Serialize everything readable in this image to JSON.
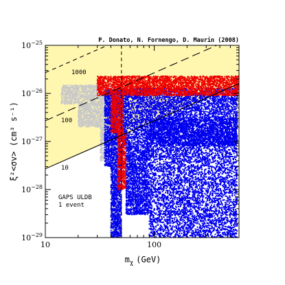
{
  "chart_data": {
    "type": "scatter",
    "title": "",
    "credit": "P. Donato, N. Fornengo, D. Maurin (2008)",
    "xlabel": "m",
    "xlabel_sub": "χ",
    "xlabel_unit": "(GeV)",
    "ylabel": "ξ²<σv> (cm³ s⁻¹)",
    "x_scale": "log",
    "y_scale": "log",
    "xlim": [
      10,
      600
    ],
    "ylim": [
      1e-29,
      1e-25
    ],
    "x_ticks": [
      {
        "value": 10,
        "label": "10"
      },
      {
        "value": 100,
        "label": "100"
      }
    ],
    "y_ticks": [
      {
        "value": 1e-29,
        "base": "10",
        "exp": "−29"
      },
      {
        "value": 1e-28,
        "base": "10",
        "exp": "−28"
      },
      {
        "value": 1e-27,
        "base": "10",
        "exp": "−27"
      },
      {
        "value": 1e-26,
        "base": "10",
        "exp": "−26"
      },
      {
        "value": 1e-25,
        "base": "10",
        "exp": "−25"
      }
    ],
    "excluded_region": {
      "color": "#fff7b0",
      "boundary": [
        [
          10,
          2.7e-28
        ],
        [
          100,
          2.7e-27
        ],
        [
          600,
          1.6e-26
        ]
      ]
    },
    "iso_event_lines": [
      {
        "label": "GAPS ULDB\n1 event",
        "style": "solid",
        "points": [
          [
            10,
            2.7e-28
          ],
          [
            600,
            1.6e-26
          ]
        ]
      },
      {
        "label": "10",
        "style": "long-dash",
        "points": [
          [
            10,
            2.7e-27
          ],
          [
            600,
            1.6e-25
          ]
        ]
      },
      {
        "label": "100",
        "style": "short-dash",
        "points": [
          [
            10,
            2.7e-26
          ],
          [
            600,
            1.6e-24
          ]
        ]
      },
      {
        "label": "1000",
        "style": "dotted",
        "points": [
          [
            10,
            2.7e-25
          ],
          [
            600,
            1.6e-23
          ]
        ]
      }
    ],
    "vertical_reference": {
      "x": 50,
      "style": "dashed"
    },
    "series": [
      {
        "color_name": "gray",
        "color": "#c8c8c8",
        "regions": [
          {
            "x": [
              14,
              45
            ],
            "y": [
              6e-27,
              1.5e-26
            ]
          },
          {
            "x": [
              20,
              40
            ],
            "y": [
              2e-27,
              6e-27
            ]
          },
          {
            "x": [
              32,
              48
            ],
            "y": [
              4e-28,
              2e-27
            ]
          },
          {
            "x": [
              40,
              50
            ],
            "y": [
              1e-29,
              4e-28
            ]
          }
        ]
      },
      {
        "color_name": "blue",
        "color": "#0000ee",
        "regions": [
          {
            "x": [
              35,
              52
            ],
            "y": [
              3e-28,
              1.2e-26
            ]
          },
          {
            "x": [
              40,
              50
            ],
            "y": [
              1e-29,
              3e-28
            ]
          },
          {
            "x": [
              52,
              580
            ],
            "y": [
              8e-28,
              1.3e-26
            ]
          },
          {
            "x": [
              90,
              580
            ],
            "y": [
              1e-29,
              3e-27
            ]
          },
          {
            "x": [
              55,
              90
            ],
            "y": [
              3e-29,
              8e-28
            ]
          }
        ]
      },
      {
        "color_name": "red",
        "color": "#ee0000",
        "regions": [
          {
            "x": [
              30,
              600
            ],
            "y": [
              9e-27,
              2.3e-26
            ]
          },
          {
            "x": [
              40,
              52
            ],
            "y": [
              1.5e-27,
              9e-27
            ]
          },
          {
            "x": [
              46,
              55
            ],
            "y": [
              1e-28,
              1.5e-27
            ]
          }
        ]
      }
    ],
    "annotations": {
      "gaps_line1": "GAPS ULDB",
      "gaps_line2": "1 event",
      "label_10": "10",
      "label_100": "100",
      "label_1000": "1000"
    },
    "grid": false,
    "legend": "none"
  }
}
